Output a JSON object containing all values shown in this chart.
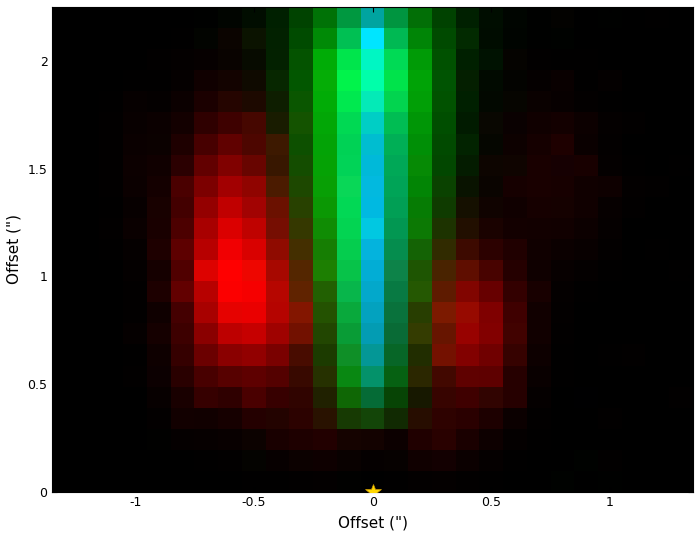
{
  "xlim": [
    -1.35,
    1.35
  ],
  "ylim": [
    0,
    2.25
  ],
  "xlabel": "Offset (\")",
  "ylabel": "Offset (\")",
  "star_x": 0.0,
  "star_y": 0.0,
  "star_color": "#FFD700",
  "grid_nx": 27,
  "grid_ny": 23,
  "axis_fontsize": 11
}
